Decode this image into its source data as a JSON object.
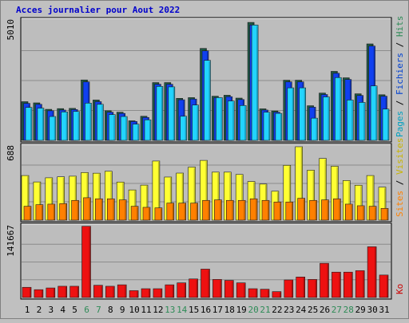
{
  "title": "Acces journalier pour Aout 2022",
  "colors": {
    "background": "#c0c0c0",
    "plot_background": "#bdbdbd",
    "title": "#0000cc",
    "grid": "#8c8c8c",
    "pages": "#22d4ff",
    "hits": "#1f5a46",
    "files": "#1040f0",
    "visits": "#ffff33",
    "sites": "#ff8000",
    "kb": "#ee1111",
    "weekend_label": "#2e8b57",
    "weekday_label": "#000000",
    "legend_pages": "#00a0c0",
    "legend_files": "#0040d0",
    "legend_hits": "#2e8b57",
    "legend_sites": "#ff8000",
    "legend_visits": "#c8b400",
    "legend_kb": "#cc0000"
  },
  "chart_data": [
    {
      "type": "bar",
      "panel": "hits-files-pages",
      "max_label": "5010",
      "ylim": [
        0,
        5010
      ],
      "legend": [
        "Pages",
        "Fichiers",
        "Hits"
      ],
      "categories": [
        "1",
        "2",
        "3",
        "4",
        "5",
        "6",
        "7",
        "8",
        "9",
        "10",
        "11",
        "12",
        "13",
        "14",
        "15",
        "16",
        "17",
        "18",
        "19",
        "20",
        "21",
        "22",
        "23",
        "24",
        "25",
        "26",
        "27",
        "28",
        "29",
        "30",
        "31"
      ],
      "weekend_days": [
        6,
        7,
        13,
        14,
        20,
        21,
        27,
        28
      ],
      "series": [
        {
          "name": "Hits",
          "values": [
            1620,
            1570,
            1300,
            1330,
            1340,
            2530,
            1690,
            1240,
            1180,
            820,
            1010,
            2420,
            2420,
            1760,
            1790,
            3850,
            1850,
            1890,
            1770,
            4940,
            1320,
            1230,
            2520,
            2520,
            1450,
            1980,
            2890,
            2620,
            1950,
            4040,
            1910
          ]
        },
        {
          "name": "Fichiers",
          "values": [
            1550,
            1510,
            1240,
            1270,
            1290,
            2450,
            1620,
            1180,
            1130,
            790,
            960,
            2350,
            2350,
            1700,
            1730,
            3750,
            1790,
            1830,
            1710,
            4830,
            1270,
            1180,
            2450,
            2450,
            1390,
            1920,
            2810,
            2550,
            1880,
            3950,
            1850
          ]
        },
        {
          "name": "Pages",
          "values": [
            1380,
            1350,
            1000,
            1190,
            1210,
            1560,
            1510,
            1080,
            1000,
            680,
            860,
            2260,
            2240,
            1010,
            1480,
            3350,
            1790,
            1650,
            1460,
            4830,
            1180,
            1130,
            2200,
            2200,
            930,
            1820,
            2630,
            1690,
            1590,
            2280,
            1310
          ]
        }
      ]
    },
    {
      "type": "bar",
      "panel": "visits-sites",
      "max_label": "688",
      "ylim": [
        0,
        688
      ],
      "legend": [
        "Sites",
        "Visites"
      ],
      "categories": [
        "1",
        "2",
        "3",
        "4",
        "5",
        "6",
        "7",
        "8",
        "9",
        "10",
        "11",
        "12",
        "13",
        "14",
        "15",
        "16",
        "17",
        "18",
        "19",
        "20",
        "21",
        "22",
        "23",
        "24",
        "25",
        "26",
        "27",
        "28",
        "29",
        "30",
        "31"
      ],
      "series": [
        {
          "name": "Visites",
          "values": [
            418,
            358,
            397,
            406,
            412,
            446,
            440,
            458,
            357,
            283,
            328,
            554,
            404,
            441,
            497,
            560,
            450,
            450,
            428,
            362,
            338,
            271,
            514,
            688,
            468,
            578,
            505,
            371,
            327,
            418,
            309
          ]
        },
        {
          "name": "Sites",
          "values": [
            130,
            145,
            150,
            155,
            185,
            210,
            200,
            200,
            190,
            130,
            120,
            115,
            160,
            160,
            160,
            185,
            190,
            185,
            185,
            200,
            185,
            170,
            170,
            205,
            185,
            190,
            200,
            150,
            135,
            130,
            110
          ]
        }
      ]
    },
    {
      "type": "bar",
      "panel": "kb",
      "max_label": "141667",
      "ylim": [
        0,
        141667
      ],
      "legend": [
        "Ko"
      ],
      "categories": [
        "1",
        "2",
        "3",
        "4",
        "5",
        "6",
        "7",
        "8",
        "9",
        "10",
        "11",
        "12",
        "13",
        "14",
        "15",
        "16",
        "17",
        "18",
        "19",
        "20",
        "21",
        "22",
        "23",
        "24",
        "25",
        "26",
        "27",
        "28",
        "29",
        "30",
        "31"
      ],
      "series": [
        {
          "name": "Ko",
          "values": [
            20300,
            15600,
            19000,
            22400,
            22400,
            142100,
            24400,
            22400,
            25300,
            13600,
            17500,
            17500,
            25300,
            29200,
            37000,
            56600,
            36000,
            34100,
            29200,
            17500,
            16500,
            11700,
            35000,
            40900,
            36000,
            68200,
            50600,
            50600,
            53500,
            101200,
            44800
          ]
        }
      ]
    }
  ]
}
